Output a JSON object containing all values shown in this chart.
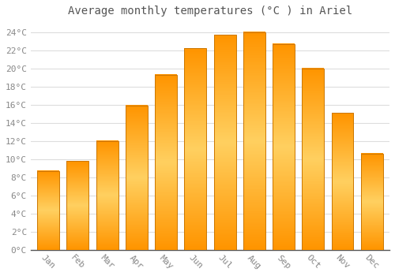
{
  "title": "Average monthly temperatures (°C ) in Ariel",
  "months": [
    "Jan",
    "Feb",
    "Mar",
    "Apr",
    "May",
    "Jun",
    "Jul",
    "Aug",
    "Sep",
    "Oct",
    "Nov",
    "Dec"
  ],
  "values": [
    8.7,
    9.8,
    12.0,
    15.9,
    19.3,
    22.2,
    23.7,
    24.0,
    22.7,
    20.0,
    15.1,
    10.6
  ],
  "bar_color": "#FFA500",
  "bar_edge_color": "#CC7700",
  "background_color": "#FFFFFF",
  "grid_color": "#DDDDDD",
  "ylim": [
    0,
    25
  ],
  "ytick_values": [
    0,
    2,
    4,
    6,
    8,
    10,
    12,
    14,
    16,
    18,
    20,
    22,
    24
  ],
  "title_fontsize": 10,
  "tick_fontsize": 8,
  "font_family": "monospace",
  "bar_width": 0.75
}
